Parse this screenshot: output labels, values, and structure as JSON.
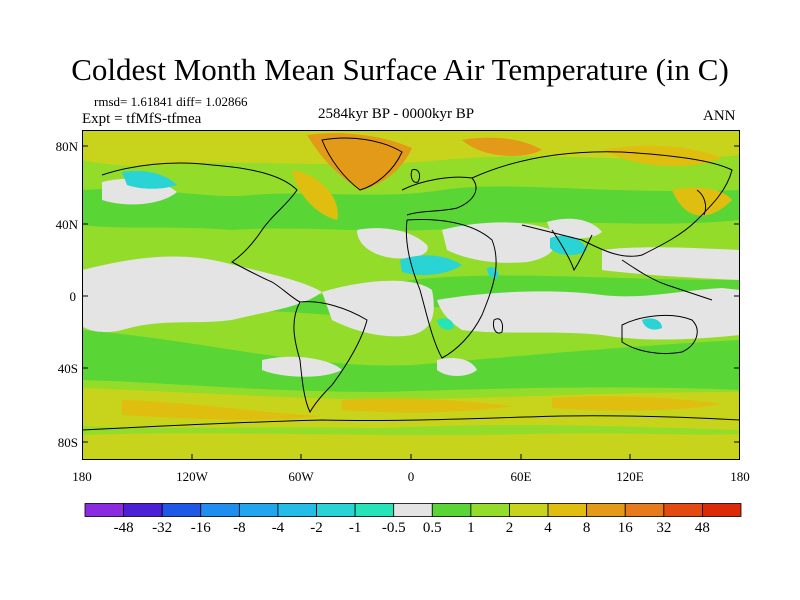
{
  "title": "Coldest Month Mean Surface Air Temperature (in C)",
  "stats": "rmsd= 1.61841 diff= 1.02866",
  "experiment": "Expt = tfMfS-tfmea",
  "period": "2584kyr BP - 0000kyr BP",
  "season": "ANN",
  "lat_labels": [
    "80N",
    "40N",
    "0",
    "40S",
    "80S"
  ],
  "lon_labels": [
    "180",
    "120W",
    "60W",
    "0",
    "60E",
    "120E",
    "180"
  ],
  "colorbar": {
    "labels": [
      "-48",
      "-32",
      "-16",
      "-8",
      "-4",
      "-2",
      "-1",
      "-0.5",
      "0.5",
      "1",
      "2",
      "4",
      "8",
      "16",
      "32",
      "48"
    ],
    "colors": [
      "#8a2be2",
      "#4b1fd6",
      "#1f57e6",
      "#1e8ff0",
      "#21a6ee",
      "#24bde8",
      "#2ad4d4",
      "#26e3b8",
      "#e4e4e4",
      "#59d636",
      "#93dc2a",
      "#c8d41c",
      "#e0be10",
      "#e39a18",
      "#e67a1c",
      "#e34a12",
      "#dc2a08"
    ]
  },
  "colors": {
    "neutral": "#e4e4e4",
    "slight_warm": "#59d636",
    "warm": "#93dc2a",
    "warmer": "#c8d41c",
    "hot": "#e0be10",
    "hotter": "#e39a18",
    "cool": "#2ad4d4",
    "coast": "#000000"
  }
}
